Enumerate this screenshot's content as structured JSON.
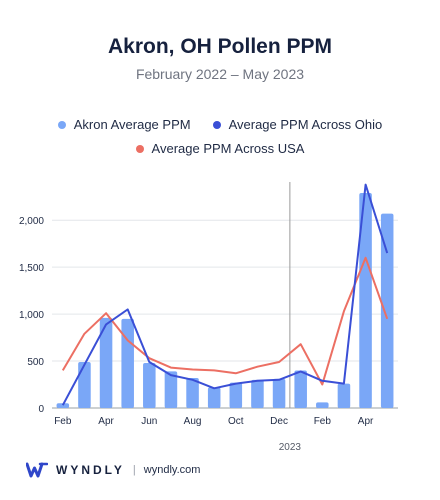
{
  "title": "Akron, OH Pollen PPM",
  "subtitle": "February 2022 – May 2023",
  "footer": {
    "brand": "WYNDLY",
    "separator": "|",
    "url": "wyndly.com"
  },
  "colors": {
    "bar": "#7aa7f7",
    "ohio": "#3a4fd6",
    "usa": "#ec6f63",
    "grid": "#e3e6ea",
    "axis": "#9aa0a6",
    "divider": "#9a9a9a"
  },
  "chart_data": {
    "type": "bar",
    "categories": [
      "Feb",
      "Mar",
      "Apr",
      "May",
      "Jun",
      "Jul",
      "Aug",
      "Sep",
      "Oct",
      "Nov",
      "Dec",
      "Jan",
      "Feb",
      "Mar",
      "Apr",
      "May"
    ],
    "x_tick_labels": [
      "Feb",
      "",
      "Apr",
      "",
      "Jun",
      "",
      "Aug",
      "",
      "Oct",
      "",
      "Dec",
      "",
      "Feb",
      "",
      "Apr",
      ""
    ],
    "year_marker": {
      "label": "2023",
      "after_index": 10
    },
    "series": [
      {
        "name": "Akron Average PPM",
        "kind": "bar",
        "color": "#7aa7f7",
        "values": [
          50,
          490,
          960,
          950,
          480,
          390,
          320,
          220,
          270,
          300,
          310,
          400,
          60,
          260,
          2290,
          2070
        ]
      },
      {
        "name": "Average PPM Across Ohio",
        "kind": "line",
        "color": "#3a4fd6",
        "values": [
          30,
          460,
          890,
          1050,
          490,
          350,
          300,
          210,
          260,
          290,
          300,
          390,
          290,
          260,
          2380,
          1650
        ]
      },
      {
        "name": "Average PPM Across USA",
        "kind": "line",
        "color": "#ec6f63",
        "values": [
          400,
          790,
          1010,
          720,
          530,
          430,
          410,
          400,
          370,
          440,
          490,
          680,
          250,
          1030,
          1600,
          950
        ]
      }
    ],
    "y_ticks": [
      0,
      500,
      1000,
      1500,
      2000
    ],
    "y_tick_labels": [
      "0",
      "500",
      "1,000",
      "1,500",
      "2,000"
    ],
    "ylim": [
      0,
      2450
    ],
    "xlabel": "",
    "ylabel": "",
    "grid": true,
    "legend": "top"
  }
}
